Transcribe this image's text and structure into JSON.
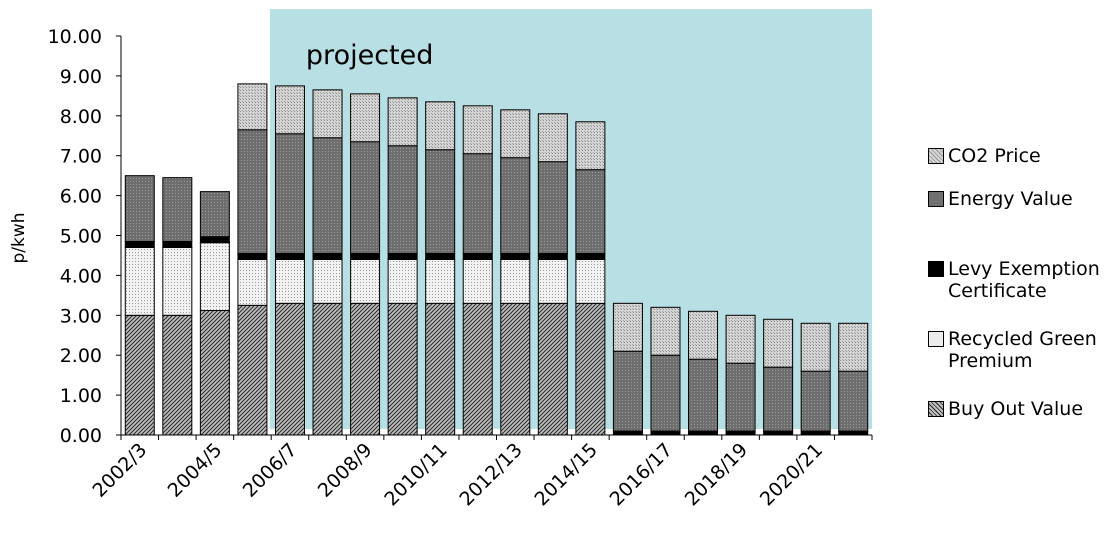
{
  "chart_data": {
    "type": "bar",
    "stacked": true,
    "title": "",
    "xlabel": "",
    "ylabel": "p/kwh",
    "ylim": [
      0,
      10
    ],
    "ytick_step": 1,
    "ytick_labels": [
      "0.00",
      "1.00",
      "2.00",
      "3.00",
      "4.00",
      "5.00",
      "6.00",
      "7.00",
      "8.00",
      "9.00",
      "10.00"
    ],
    "categories": [
      "2002/3",
      "2003/4",
      "2004/5",
      "2005/6",
      "2006/7",
      "2007/8",
      "2008/9",
      "2009/10",
      "2010/11",
      "2011/12",
      "2012/13",
      "2013/14",
      "2014/15",
      "2015/16",
      "2016/17",
      "2017/18",
      "2018/19",
      "2019/20",
      "2020/21",
      "2021/22"
    ],
    "xtick_labels": [
      "2002/3",
      "",
      "2004/5",
      "",
      "2006/7",
      "",
      "2008/9",
      "",
      "2010/11",
      "",
      "2012/13",
      "",
      "2014/15",
      "",
      "2016/17",
      "",
      "2018/19",
      "",
      "2020/21",
      ""
    ],
    "projected_from_category": "2005/6",
    "annotation": "projected",
    "series": [
      {
        "name": "Buy Out Value",
        "values": [
          3.0,
          3.0,
          3.12,
          3.25,
          3.3,
          3.3,
          3.3,
          3.3,
          3.3,
          3.3,
          3.3,
          3.3,
          3.3,
          0,
          0,
          0,
          0,
          0,
          0,
          0
        ]
      },
      {
        "name": "Recycled Green Premium",
        "values": [
          1.7,
          1.7,
          1.7,
          1.15,
          1.1,
          1.1,
          1.1,
          1.1,
          1.1,
          1.1,
          1.1,
          1.1,
          1.1,
          0,
          0,
          0,
          0,
          0,
          0,
          0
        ]
      },
      {
        "name": "Levy Exemption Certificate",
        "values": [
          0.15,
          0.15,
          0.15,
          0.15,
          0.15,
          0.15,
          0.15,
          0.15,
          0.15,
          0.15,
          0.15,
          0.15,
          0.15,
          0.1,
          0.1,
          0.1,
          0.1,
          0.1,
          0.1,
          0.1
        ]
      },
      {
        "name": "Energy Value",
        "values": [
          1.65,
          1.6,
          1.13,
          3.1,
          3.0,
          2.9,
          2.8,
          2.7,
          2.6,
          2.5,
          2.4,
          2.3,
          2.1,
          2.0,
          1.9,
          1.8,
          1.7,
          1.6,
          1.5,
          1.5
        ]
      },
      {
        "name": "CO2 Price",
        "values": [
          0,
          0,
          0,
          1.15,
          1.2,
          1.2,
          1.2,
          1.2,
          1.2,
          1.2,
          1.2,
          1.2,
          1.2,
          1.2,
          1.2,
          1.2,
          1.2,
          1.2,
          1.2,
          1.2
        ]
      }
    ],
    "legend": {
      "placement": "right",
      "entries": [
        "CO2 Price",
        "Energy Value",
        "Levy Exemption\nCertificate",
        "Recycled Green\nPremium",
        "Buy Out Value"
      ]
    },
    "colors": {
      "projected_region": "#b7dfe4",
      "CO2 Price": "#d6d6d6",
      "Energy Value": "#7a7a7a",
      "Levy Exemption Certificate": "#000000",
      "Recycled Green Premium": "#ececec",
      "Buy Out Value": "#b2b2b2"
    },
    "grid": false
  }
}
